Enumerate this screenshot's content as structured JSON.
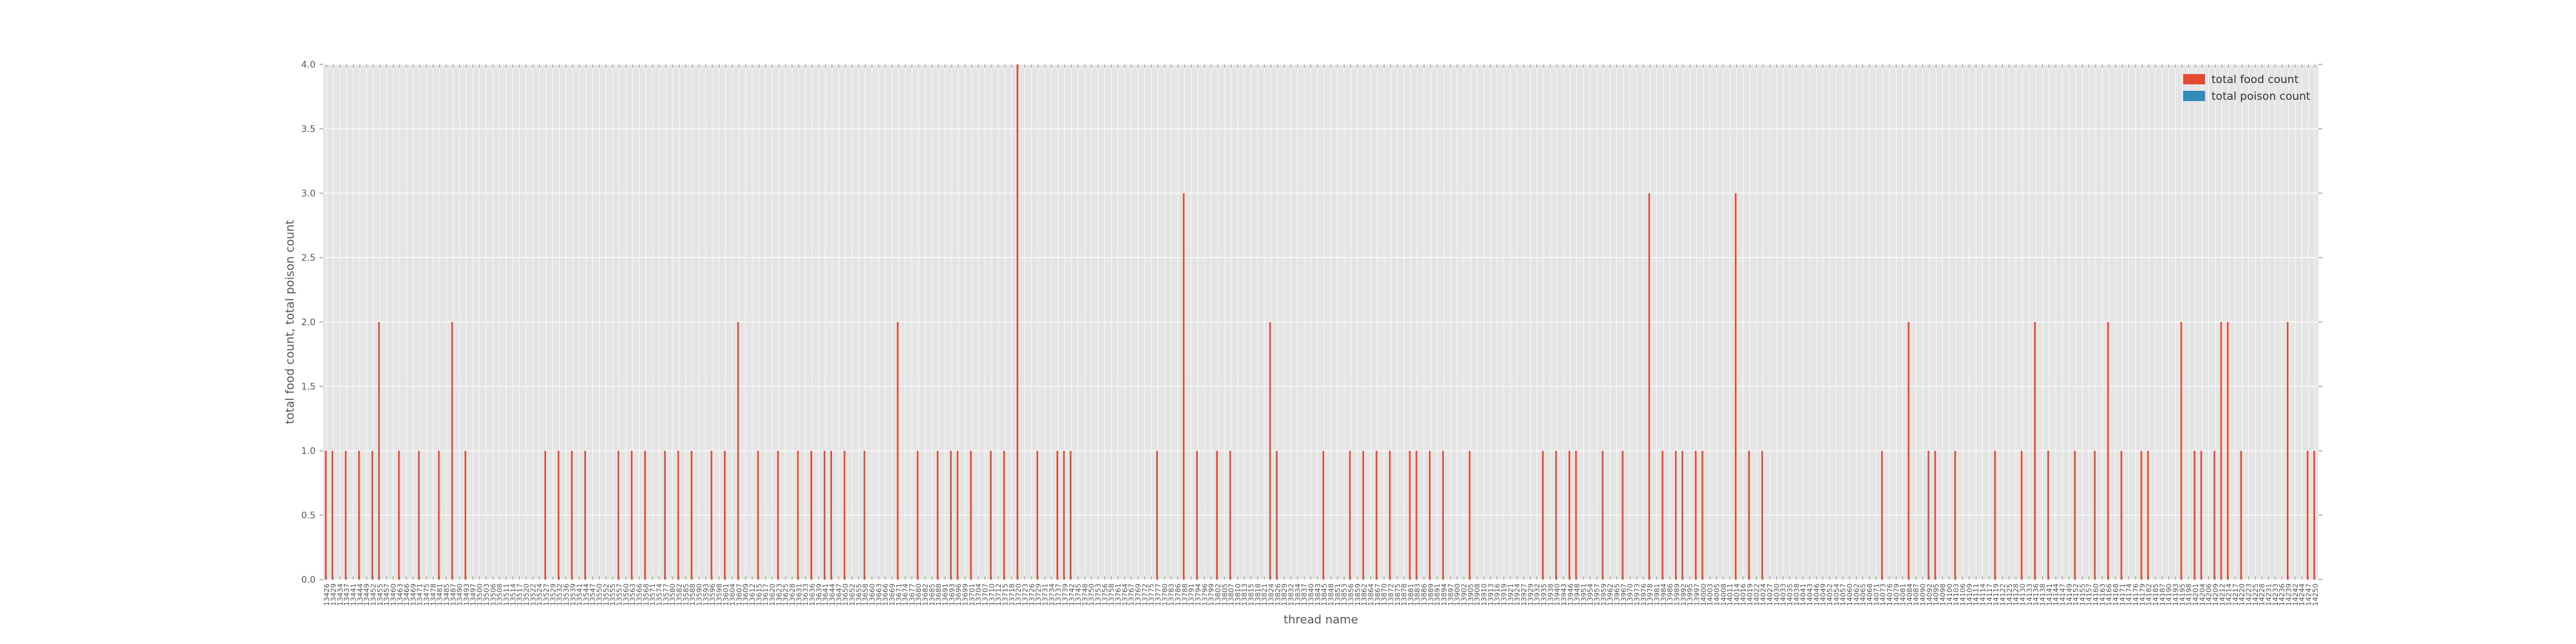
{
  "chart_data": {
    "type": "bar",
    "xlabel": "thread name",
    "ylabel": "total food count, total poison count",
    "ylim": [
      0,
      4
    ],
    "yticks": [
      "0.0",
      "0.5",
      "1.0",
      "1.5",
      "2.0",
      "2.5",
      "3.0",
      "3.5",
      "4.0"
    ],
    "grid": true,
    "legend_position": "top-right",
    "colors": {
      "food": "#e24a33",
      "poison": "#348abd",
      "plot_bg": "#e5e5e5",
      "grid": "#ffffff"
    },
    "categories": [
      "13426",
      "13429",
      "13434",
      "13437",
      "13441",
      "13444",
      "13449",
      "13452",
      "13455",
      "13457",
      "13460",
      "13463",
      "13466",
      "13469",
      "13471",
      "13475",
      "13478",
      "13481",
      "13485",
      "13487",
      "13490",
      "13493",
      "13497",
      "13500",
      "13503",
      "13506",
      "13508",
      "13511",
      "13514",
      "13517",
      "13520",
      "13522",
      "13524",
      "13527",
      "13529",
      "13532",
      "13536",
      "13539",
      "13541",
      "13544",
      "13547",
      "13550",
      "13552",
      "13555",
      "13557",
      "13560",
      "13563",
      "13566",
      "13568",
      "13571",
      "13574",
      "13577",
      "13580",
      "13582",
      "13585",
      "13588",
      "13590",
      "13593",
      "13596",
      "13598",
      "13601",
      "13604",
      "13607",
      "13609",
      "13612",
      "13615",
      "13617",
      "13620",
      "13623",
      "13625",
      "13628",
      "13631",
      "13633",
      "13636",
      "13639",
      "13641",
      "13644",
      "13647",
      "13650",
      "13652",
      "13655",
      "13658",
      "13660",
      "13663",
      "13666",
      "13669",
      "13671",
      "13674",
      "13677",
      "13680",
      "13682",
      "13685",
      "13688",
      "13691",
      "13693",
      "13696",
      "13699",
      "13701",
      "13704",
      "13707",
      "13710",
      "13712",
      "13715",
      "13718",
      "13720",
      "13723",
      "13726",
      "13729",
      "13731",
      "13734",
      "13737",
      "13739",
      "13742",
      "13745",
      "13748",
      "13750",
      "13753",
      "13756",
      "13758",
      "13761",
      "13764",
      "13767",
      "13769",
      "13772",
      "13775",
      "13777",
      "13780",
      "13783",
      "13786",
      "13788",
      "13791",
      "13794",
      "13796",
      "13799",
      "13802",
      "13805",
      "13807",
      "13810",
      "13813",
      "13815",
      "13818",
      "13821",
      "13824",
      "13826",
      "13829",
      "13832",
      "13834",
      "13837",
      "13840",
      "13843",
      "13845",
      "13848",
      "13851",
      "13853",
      "13856",
      "13859",
      "13862",
      "13864",
      "13867",
      "13870",
      "13872",
      "13875",
      "13878",
      "13881",
      "13883",
      "13886",
      "13889",
      "13891",
      "13894",
      "13897",
      "13900",
      "13902",
      "13905",
      "13908",
      "13910",
      "13913",
      "13916",
      "13919",
      "13921",
      "13924",
      "13927",
      "13929",
      "13932",
      "13935",
      "13938",
      "13940",
      "13943",
      "13946",
      "13948",
      "13951",
      "13954",
      "13957",
      "13959",
      "13962",
      "13965",
      "13967",
      "13970",
      "13973",
      "13976",
      "13978",
      "13981",
      "13984",
      "13986",
      "13989",
      "13992",
      "13995",
      "13997",
      "14000",
      "14003",
      "14005",
      "14008",
      "14011",
      "14014",
      "14016",
      "14019",
      "14022",
      "14024",
      "14027",
      "14030",
      "14033",
      "14035",
      "14038",
      "14041",
      "14043",
      "14046",
      "14049",
      "14052",
      "14054",
      "14057",
      "14060",
      "14062",
      "14065",
      "14068",
      "14071",
      "14073",
      "14076",
      "14079",
      "14081",
      "14084",
      "14087",
      "14090",
      "14092",
      "14095",
      "14098",
      "14100",
      "14103",
      "14106",
      "14109",
      "14111",
      "14114",
      "14117",
      "14119",
      "14122",
      "14125",
      "14128",
      "14130",
      "14133",
      "14136",
      "14138",
      "14141",
      "14144",
      "14147",
      "14149",
      "14152",
      "14155",
      "14157",
      "14160",
      "14163",
      "14166",
      "14168",
      "14171",
      "14174",
      "14176",
      "14179",
      "14182",
      "14185",
      "14187",
      "14190",
      "14193",
      "14195",
      "14198",
      "14201",
      "14204",
      "14206",
      "14209",
      "14212",
      "14214",
      "14217",
      "14220",
      "14223",
      "14225",
      "14228",
      "14231",
      "14233",
      "14236",
      "14239",
      "14242",
      "14244",
      "14247",
      "14250"
    ],
    "series": [
      {
        "name": "total food count",
        "values": [
          1,
          1,
          0,
          1,
          0,
          1,
          0,
          1,
          2,
          0,
          0,
          1,
          0,
          0,
          1,
          0,
          0,
          1,
          0,
          2,
          0,
          1,
          0,
          0,
          0,
          0,
          0,
          0,
          0,
          0,
          0,
          0,
          0,
          1,
          0,
          1,
          0,
          1,
          0,
          1,
          0,
          0,
          0,
          0,
          1,
          0,
          1,
          0,
          1,
          0,
          0,
          1,
          0,
          1,
          0,
          1,
          0,
          0,
          1,
          0,
          1,
          0,
          2,
          0,
          0,
          1,
          0,
          0,
          1,
          0,
          0,
          1,
          0,
          1,
          0,
          1,
          1,
          0,
          1,
          0,
          0,
          1,
          0,
          0,
          0,
          0,
          2,
          0,
          0,
          1,
          0,
          0,
          1,
          0,
          1,
          1,
          0,
          1,
          0,
          0,
          1,
          0,
          1,
          0,
          4,
          0,
          0,
          1,
          0,
          0,
          1,
          1,
          1,
          0,
          0,
          0,
          0,
          0,
          0,
          0,
          0,
          0,
          0,
          0,
          0,
          1,
          0,
          0,
          0,
          3,
          0,
          1,
          0,
          0,
          1,
          0,
          1,
          0,
          0,
          0,
          0,
          0,
          2,
          1,
          0,
          0,
          0,
          0,
          0,
          0,
          1,
          0,
          0,
          0,
          1,
          0,
          1,
          0,
          1,
          0,
          1,
          0,
          0,
          1,
          1,
          0,
          1,
          0,
          1,
          0,
          0,
          0,
          1,
          0,
          0,
          0,
          0,
          0,
          0,
          0,
          0,
          0,
          0,
          1,
          0,
          1,
          0,
          1,
          1,
          0,
          0,
          0,
          1,
          0,
          0,
          1,
          0,
          0,
          0,
          3,
          0,
          1,
          0,
          1,
          1,
          0,
          1,
          1,
          0,
          0,
          0,
          0,
          3,
          0,
          1,
          0,
          1,
          0,
          0,
          0,
          0,
          0,
          0,
          0,
          0,
          0,
          0,
          0,
          0,
          0,
          0,
          0,
          0,
          0,
          1,
          0,
          0,
          0,
          2,
          0,
          0,
          1,
          1,
          0,
          0,
          1,
          0,
          0,
          0,
          0,
          0,
          1,
          0,
          0,
          0,
          1,
          0,
          2,
          0,
          1,
          0,
          0,
          0,
          1,
          0,
          0,
          1,
          0,
          2,
          0,
          1,
          0,
          0,
          1,
          1,
          0,
          0,
          0,
          0,
          2,
          0,
          1,
          1,
          0,
          1,
          2,
          2,
          0,
          1,
          0,
          0,
          0,
          0,
          0,
          0,
          2,
          0,
          0,
          1,
          1
        ]
      },
      {
        "name": "total poison count",
        "values": [
          0,
          0,
          0,
          0,
          0,
          0,
          0,
          0,
          0,
          0,
          0,
          0,
          0,
          0,
          0,
          0,
          0,
          0,
          0,
          0,
          0,
          0,
          0,
          0,
          0,
          0,
          0,
          0,
          0,
          0,
          0,
          0,
          0,
          0,
          0,
          0,
          0,
          0,
          0,
          0,
          0,
          0,
          0,
          0,
          0,
          0,
          0,
          0,
          0,
          0,
          0,
          0,
          0,
          0,
          0,
          0,
          0,
          0,
          0,
          0,
          0,
          0,
          0,
          0,
          0,
          0,
          0,
          0,
          0,
          0,
          0,
          0,
          0,
          0,
          0,
          0,
          0,
          0,
          0,
          0,
          0,
          0,
          0,
          0,
          0,
          0,
          0,
          0,
          0,
          0,
          0,
          0,
          0,
          0,
          0,
          0,
          0,
          0,
          0,
          0,
          0,
          0,
          0,
          0,
          0,
          0,
          0,
          0,
          0,
          0,
          0,
          0,
          0,
          0,
          0,
          0,
          0,
          0,
          0,
          0,
          0,
          0,
          0,
          0,
          0,
          0,
          0,
          0,
          0,
          0,
          0,
          0,
          0,
          0,
          0,
          0,
          0,
          0,
          0,
          0,
          0,
          0,
          0,
          0,
          0,
          0,
          0,
          0,
          0,
          0,
          0,
          0,
          0,
          0,
          0,
          0,
          0,
          0,
          0,
          0,
          0,
          0,
          0,
          0,
          0,
          0,
          0,
          0,
          0,
          0,
          0,
          0,
          0,
          0,
          0,
          0,
          0,
          0,
          0,
          0,
          0,
          0,
          0,
          0,
          0,
          0,
          0,
          0,
          0,
          0,
          0,
          0,
          0,
          0,
          0,
          0,
          0,
          0,
          0,
          0,
          0,
          0,
          0,
          0,
          0,
          0,
          0,
          0,
          0,
          0,
          0,
          0,
          0,
          0,
          0,
          0,
          0,
          0,
          0,
          0,
          0,
          0,
          0,
          0,
          0,
          0,
          0,
          0,
          0,
          0,
          0,
          0,
          0,
          0,
          0,
          0,
          0,
          0,
          0,
          0,
          0,
          0,
          0,
          0,
          0,
          0,
          0,
          0,
          0,
          0,
          0,
          0,
          0,
          0,
          0,
          0,
          0,
          0,
          0,
          0,
          0,
          0,
          0,
          0,
          0,
          0,
          0,
          0,
          0,
          0,
          0,
          0,
          0,
          0,
          0,
          0,
          0,
          0,
          0,
          0,
          0,
          0,
          0,
          0,
          0,
          0,
          0,
          0,
          0,
          0,
          0,
          0,
          0,
          0,
          0,
          0,
          0,
          0,
          0,
          0
        ]
      }
    ]
  }
}
